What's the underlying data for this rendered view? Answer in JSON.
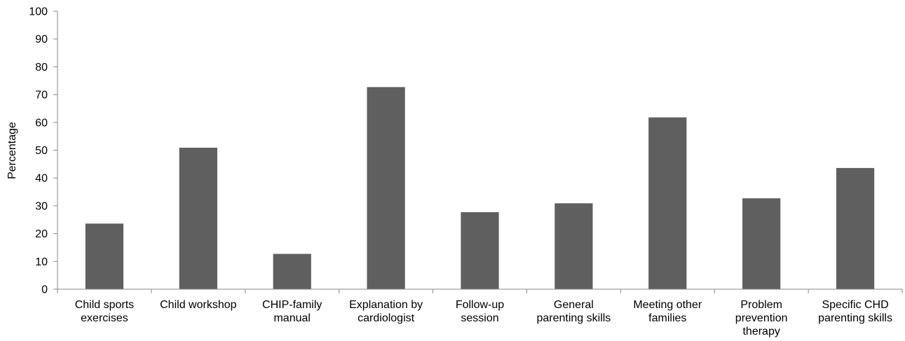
{
  "chart_data": {
    "type": "bar",
    "title": "",
    "xlabel": "",
    "ylabel": "Percentage",
    "ylim": [
      0,
      100
    ],
    "yticks": [
      0,
      10,
      20,
      30,
      40,
      50,
      60,
      70,
      80,
      90,
      100
    ],
    "grid": false,
    "legend": "none",
    "bar_color": "#5f5f5f",
    "categories": [
      [
        "Child sports",
        "exercises"
      ],
      [
        "Child workshop"
      ],
      [
        "CHIP-family",
        "manual"
      ],
      [
        "Explanation by",
        "cardiologist"
      ],
      [
        "Follow-up",
        "session"
      ],
      [
        "General",
        "parenting skills"
      ],
      [
        "Meeting other",
        "families"
      ],
      [
        "Problem",
        "prevention",
        "therapy"
      ],
      [
        "Specific CHD",
        "parenting skills"
      ]
    ],
    "values": [
      23.6,
      50.9,
      12.7,
      72.7,
      27.7,
      30.9,
      61.8,
      32.7,
      43.6
    ]
  }
}
